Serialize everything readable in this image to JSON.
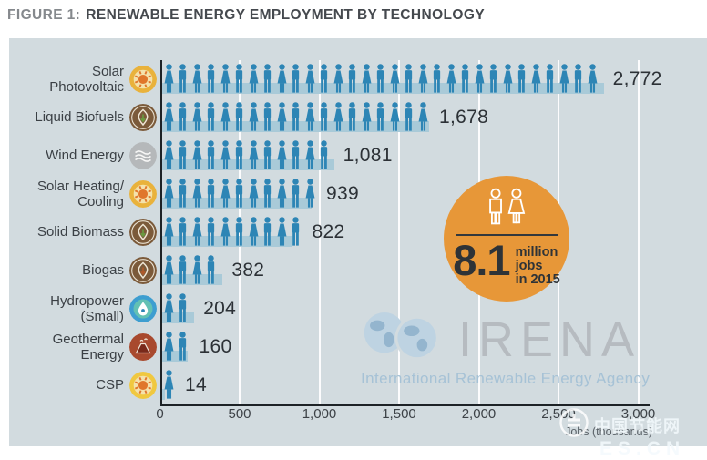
{
  "title": {
    "prefix": "FIGURE 1:",
    "text": "RENEWABLE ENERGY EMPLOYMENT BY TECHNOLOGY"
  },
  "chart_data": {
    "type": "bar",
    "style": "pictogram-bar",
    "title": "Renewable energy employment by technology",
    "x_axis_label": "Jobs (thousands)",
    "x_ticks": [
      "0",
      "500",
      "1,000",
      "1,500",
      "2,000",
      "2,500",
      "3,000"
    ],
    "xlim": [
      0,
      3000
    ],
    "grid": "vertical-white",
    "categories": [
      {
        "label": "Solar Photovoltaic",
        "label_lines": [
          "Solar",
          "Photovoltaic"
        ],
        "icon": "solar-pv",
        "value": 2772,
        "display": "2,772",
        "person_icons": 31
      },
      {
        "label": "Liquid Biofuels",
        "label_lines": [
          "Liquid Biofuels"
        ],
        "icon": "liquid-biofuels",
        "value": 1678,
        "display": "1,678",
        "person_icons": 19
      },
      {
        "label": "Wind Energy",
        "label_lines": [
          "Wind Energy"
        ],
        "icon": "wind-energy",
        "value": 1081,
        "display": "1,081",
        "person_icons": 12
      },
      {
        "label": "Solar Heating/Cooling",
        "label_lines": [
          "Solar Heating/",
          "Cooling"
        ],
        "icon": "solar-heating",
        "value": 939,
        "display": "939",
        "person_icons": 11
      },
      {
        "label": "Solid Biomass",
        "label_lines": [
          "Solid Biomass"
        ],
        "icon": "solid-biomass",
        "value": 822,
        "display": "822",
        "person_icons": 10
      },
      {
        "label": "Biogas",
        "label_lines": [
          "Biogas"
        ],
        "icon": "biogas",
        "value": 382,
        "display": "382",
        "person_icons": 4
      },
      {
        "label": "Hydropower (Small)",
        "label_lines": [
          "Hydropower",
          "(Small)"
        ],
        "icon": "hydropower",
        "value": 204,
        "display": "204",
        "person_icons": 2
      },
      {
        "label": "Geothermal Energy",
        "label_lines": [
          "Geothermal",
          "Energy"
        ],
        "icon": "geothermal",
        "value": 160,
        "display": "160",
        "person_icons": 2
      },
      {
        "label": "CSP",
        "label_lines": [
          "CSP"
        ],
        "icon": "csp",
        "value": 14,
        "display": "14",
        "person_icons": 1
      }
    ]
  },
  "badge": {
    "value": "8.1",
    "lines": [
      "million",
      "jobs",
      "in 2015"
    ]
  },
  "watermarks": {
    "irena": {
      "acronym": "IRENA",
      "subtitle": "International Renewable Energy Agency"
    },
    "cn": {
      "line1": "中国节能网",
      "line2": "ES.CN"
    }
  },
  "colors": {
    "panel_bg": "#d2dbdf",
    "person_blue": "#2d85b5",
    "bar_light": "#a9cad8",
    "badge_orange": "#e79738",
    "title_dark": "#45494e",
    "title_gray": "#85898d",
    "value_text": "#2c3136"
  }
}
